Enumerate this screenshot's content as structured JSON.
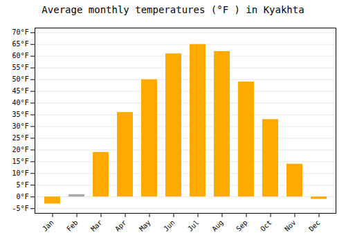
{
  "chart_data": {
    "type": "bar",
    "title": "Average monthly temperatures (°F ) in Kyakhta",
    "categories": [
      "Jan",
      "Feb",
      "Mar",
      "Apr",
      "May",
      "Jun",
      "Jul",
      "Aug",
      "Sep",
      "Oct",
      "Nov",
      "Dec"
    ],
    "values": [
      -3,
      1,
      19,
      36,
      50,
      61,
      65,
      62,
      49,
      33,
      14,
      -1
    ],
    "colors": [
      "#FFAA00",
      "#aaaaaa",
      "#FFAA00",
      "#FFAA00",
      "#FFAA00",
      "#FFAA00",
      "#FFAA00",
      "#FFAA00",
      "#FFAA00",
      "#FFAA00",
      "#FFAA00",
      "#FFAA00"
    ],
    "ylim": [
      -7,
      72
    ],
    "yticks": [
      {
        "value": -5,
        "label": "-5°F"
      },
      {
        "value": 0,
        "label": "0°F"
      },
      {
        "value": 5,
        "label": "5°F"
      },
      {
        "value": 10,
        "label": "10°F"
      },
      {
        "value": 15,
        "label": "15°F"
      },
      {
        "value": 20,
        "label": "20°F"
      },
      {
        "value": 25,
        "label": "25°F"
      },
      {
        "value": 30,
        "label": "30°F"
      },
      {
        "value": 35,
        "label": "35°F"
      },
      {
        "value": 40,
        "label": "40°F"
      },
      {
        "value": 45,
        "label": "45°F"
      },
      {
        "value": 50,
        "label": "50°F"
      },
      {
        "value": 55,
        "label": "55°F"
      },
      {
        "value": 60,
        "label": "60°F"
      },
      {
        "value": 65,
        "label": "65°F"
      },
      {
        "value": 70,
        "label": "70°F"
      }
    ],
    "grid": true
  }
}
